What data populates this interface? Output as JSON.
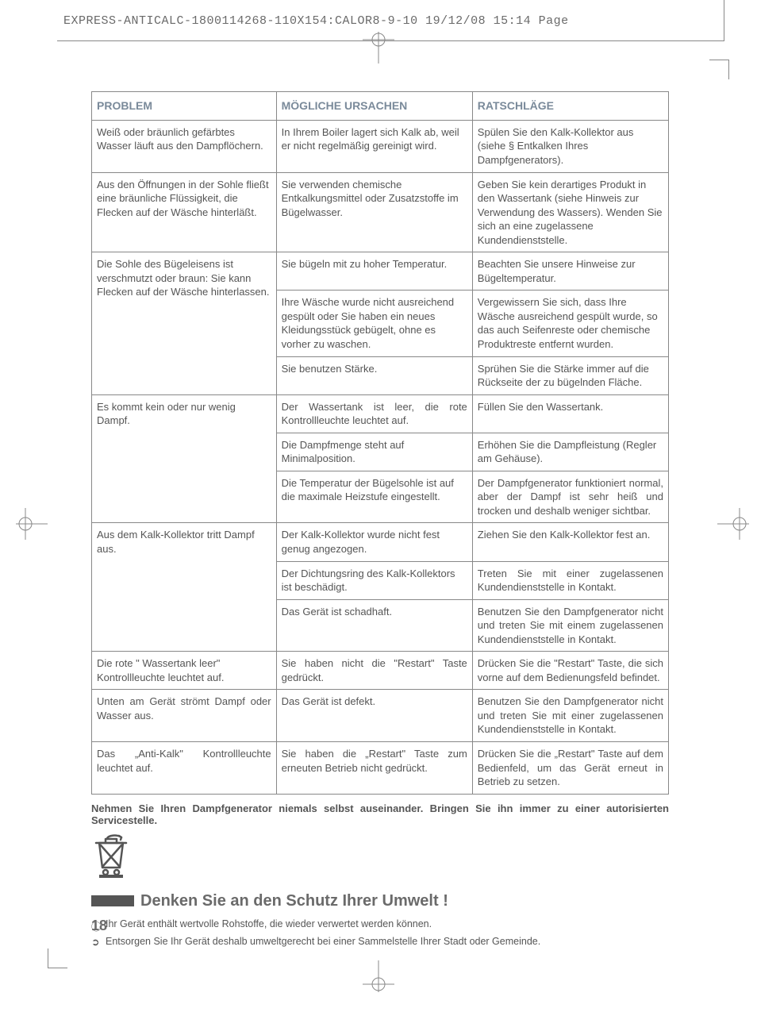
{
  "header": {
    "text": "EXPRESS-ANTICALC-1800114268-110X154:CALOR8-9-10  19/12/08  15:14  Page"
  },
  "table": {
    "headers": {
      "problem": "PROBLEM",
      "cause": "MÖGLICHE URSACHEN",
      "advice": "RATSCHLÄGE"
    },
    "groups": [
      {
        "problem": "Weiß oder bräunlich gefärbtes Wasser läuft aus den Dampflöchern.",
        "rows": [
          {
            "cause": "In Ihrem Boiler lagert sich Kalk ab, weil er nicht regelmäßig gereinigt wird.",
            "advice": "Spülen Sie den Kalk-Kollektor aus (siehe § Entkalken Ihres Dampfgenerators)."
          }
        ]
      },
      {
        "problem": "Aus den Öffnungen in der Sohle fließt eine bräunliche Flüssigkeit, die Flecken auf der Wäsche hinterläßt.",
        "rows": [
          {
            "cause": "Sie verwenden chemische Entkalkungsmittel oder Zusatzstoffe im Bügelwasser.",
            "advice": "Geben Sie kein derartiges Produkt in den Wassertank (siehe Hinweis zur Verwendung des Wassers). Wenden Sie sich an eine zugelassene Kundendienststelle."
          }
        ]
      },
      {
        "problem": "Die Sohle des Bügeleisens ist verschmutzt oder braun: Sie kann Flecken auf der Wäsche hinterlassen.",
        "rows": [
          {
            "cause": "Sie bügeln mit zu hoher Temperatur.",
            "advice": "Beachten Sie unsere Hinweise zur Bügeltemperatur."
          },
          {
            "cause": "Ihre Wäsche wurde nicht ausreichend gespült oder Sie haben ein neues Kleidungsstück gebügelt, ohne es vorher zu waschen.",
            "advice": "Vergewissern Sie sich, dass Ihre Wäsche ausreichend gespült wurde, so das auch Seifenreste oder chemische Produktreste entfernt wurden."
          },
          {
            "cause": "Sie benutzen Stärke.",
            "advice": "Sprühen Sie die Stärke immer auf die Rückseite der zu bügelnden Fläche."
          }
        ]
      },
      {
        "problem": "Es kommt kein oder nur wenig Dampf.",
        "rows": [
          {
            "cause": "Der Wassertank ist leer, die rote Kontrollleuchte leuchtet auf.",
            "cause_justify": true,
            "advice": "Füllen Sie den Wassertank."
          },
          {
            "cause": "Die Dampfmenge steht auf Minimalposition.",
            "advice": "Erhöhen Sie die Dampfleistung (Regler am Gehäuse)."
          },
          {
            "cause": "Die Temperatur der Bügelsohle ist auf die maximale Heizstufe eingestellt.",
            "advice": "Der Dampfgenerator funktioniert normal, aber der Dampf ist sehr heiß und trocken und deshalb weniger sichtbar.",
            "advice_justify": true
          }
        ]
      },
      {
        "problem": "Aus dem Kalk-Kollektor tritt Dampf aus.",
        "rows": [
          {
            "cause": "Der Kalk-Kollektor wurde nicht fest genug angezogen.",
            "advice": "Ziehen Sie den Kalk-Kollektor fest an."
          },
          {
            "cause": "Der Dichtungsring des Kalk-Kollektors ist beschädigt.",
            "advice": "Treten Sie mit einer zugelassenen Kundendienststelle in Kontakt.",
            "advice_justify": true
          },
          {
            "cause": "Das Gerät ist schadhaft.",
            "advice": "Benutzen Sie den Dampfgenerator nicht und treten Sie mit einem zugelassenen Kundendienststelle in Kontakt.",
            "advice_justify": true
          }
        ]
      },
      {
        "problem": "Die rote \" Wassertank leer\" Kontrollleuchte leuchtet auf.",
        "rows": [
          {
            "cause": "Sie haben nicht die \"Restart\" Taste gedrückt.",
            "cause_justify": true,
            "advice": "Drücken Sie die \"Restart\" Taste, die sich vorne auf dem Bedienungsfeld befindet.",
            "advice_justify": true
          }
        ]
      },
      {
        "problem": "Unten am Gerät strömt Dampf oder Wasser aus.",
        "problem_justify": true,
        "rows": [
          {
            "cause": "Das Gerät ist defekt.",
            "advice": "Benutzen Sie den Dampfgenerator nicht und treten Sie mit einer zugelassenen Kundendienststelle in Kontakt.",
            "advice_justify": true
          }
        ]
      },
      {
        "problem": "Das „Anti-Kalk\" Kontrollleuchte leuchtet auf.",
        "problem_justify": true,
        "rows": [
          {
            "cause": "Sie haben die „Restart\" Taste zum erneuten Betrieb nicht gedrückt.",
            "cause_justify": true,
            "advice": "Drücken Sie die „Restart\" Taste auf dem Bedienfeld, um das Gerät erneut in Betrieb zu setzen.",
            "advice_justify": true
          }
        ]
      }
    ]
  },
  "note": "Nehmen Sie Ihren Dampfgenerator niemals selbst auseinander. Bringen Sie ihn immer zu einer autorisierten Servicestelle.",
  "env": {
    "title": "Denken Sie an den Schutz Ihrer Umwelt !",
    "items": [
      {
        "bullet": "ⓘ",
        "text": "Ihr Gerät enthält wertvolle Rohstoffe, die wieder verwertet werden können."
      },
      {
        "bullet": "➲",
        "text": "Entsorgen Sie Ihr Gerät deshalb umweltgerecht bei einer Sammelstelle Ihrer Stadt oder Gemeinde."
      }
    ]
  },
  "page_number": "18"
}
